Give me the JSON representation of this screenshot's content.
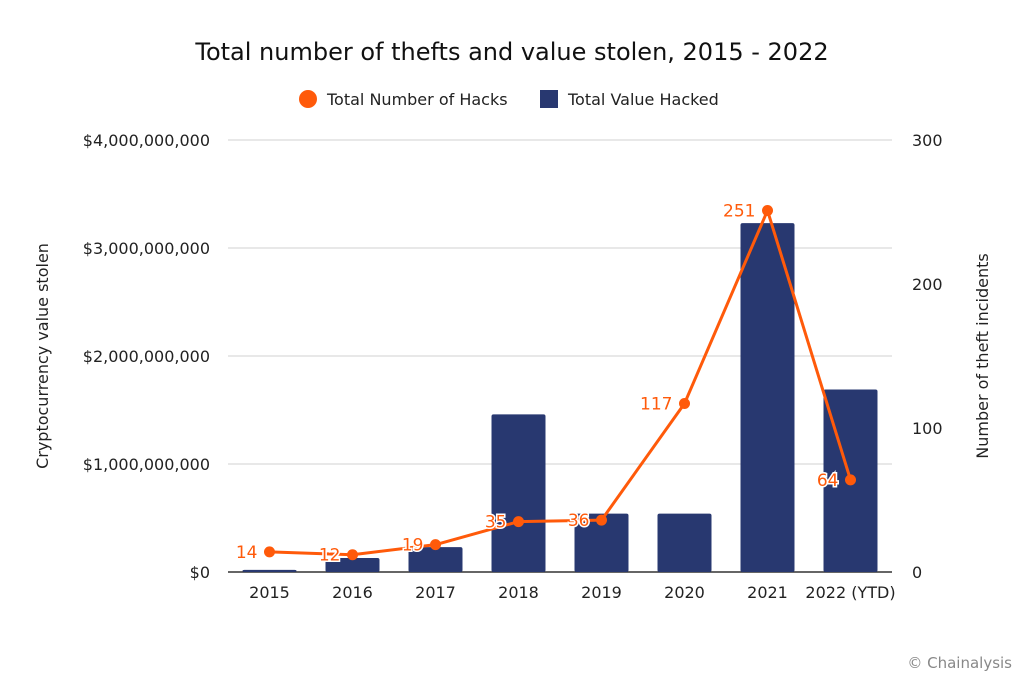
{
  "chart_data": {
    "type": "bar+line",
    "title": "Total number of thefts and value stolen, 2015 - 2022",
    "categories": [
      "2015",
      "2016",
      "2017",
      "2018",
      "2019",
      "2020",
      "2021",
      "2022 (YTD)"
    ],
    "series": [
      {
        "name": "Total Value Hacked",
        "type": "bar",
        "axis": "left",
        "color": "#283870",
        "values": [
          20000000,
          130000000,
          230000000,
          1460000000,
          540000000,
          540000000,
          3230000000,
          1690000000
        ]
      },
      {
        "name": "Total Number of Hacks",
        "type": "line",
        "axis": "right",
        "color": "#FF5A0A",
        "values": [
          14,
          12,
          19,
          35,
          36,
          117,
          251,
          64
        ],
        "labels": [
          "14",
          "12",
          "19",
          "35",
          "36",
          "117",
          "251",
          "64"
        ]
      }
    ],
    "ylabel_left": "Cryptocurrency value stolen",
    "ylabel_right": "Number of theft incidents",
    "ylim_left": [
      0,
      4000000000
    ],
    "ylim_right": [
      0,
      300
    ],
    "yticks_left": [
      "$0",
      "$1,000,000,000",
      "$2,000,000,000",
      "$3,000,000,000",
      "$4,000,000,000"
    ],
    "yticks_right": [
      "0",
      "100",
      "200",
      "300"
    ],
    "legend_position": "top-center",
    "grid": true
  },
  "credit": "© Chainalysis"
}
